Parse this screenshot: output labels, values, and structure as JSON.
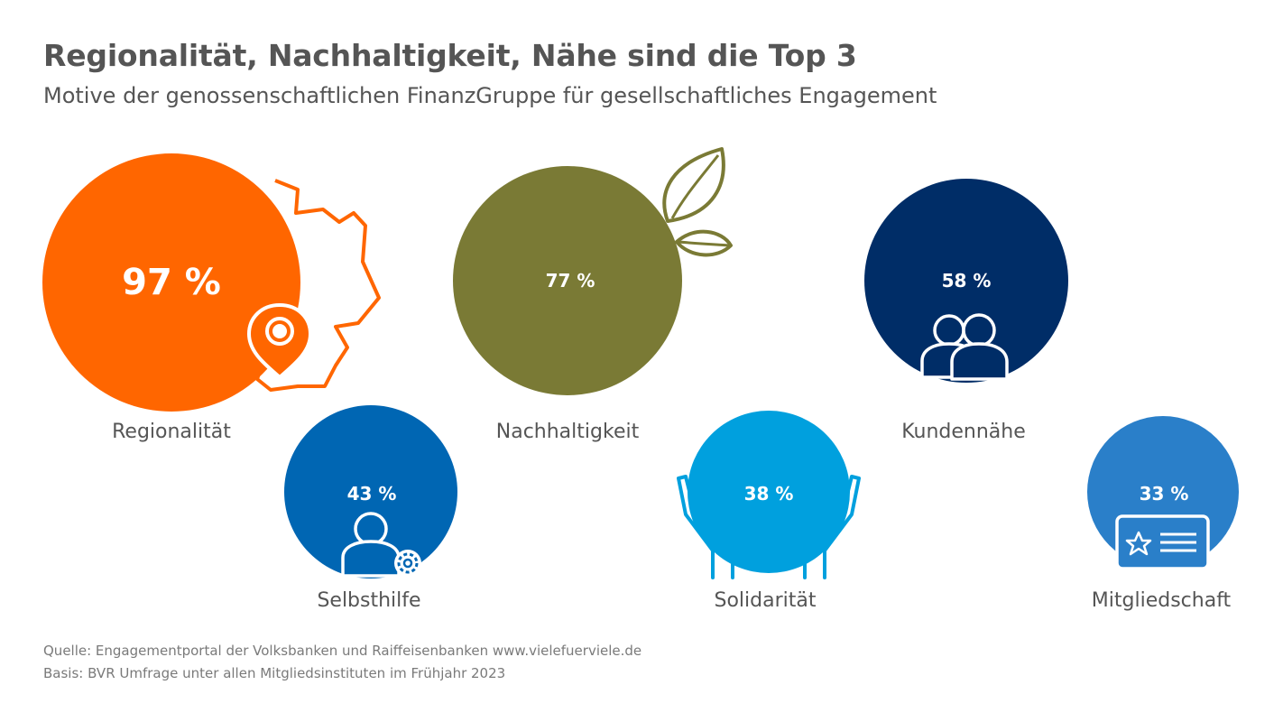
{
  "title": "Regionalität, Nachhaltigkeit, Nähe sind die Top 3",
  "subtitle": "Motive der genossenschaftlichen FinanzGruppe für gesellschaftliches Engagement",
  "chart_data": {
    "type": "bubble",
    "unit": "%",
    "items": [
      {
        "label": "Regionalität",
        "value": 97,
        "value_label": "97 %",
        "color": "#ff6600",
        "icon": "germany-map-pin-icon"
      },
      {
        "label": "Nachhaltigkeit",
        "value": 77,
        "value_label": "77 %",
        "color": "#7a7a35",
        "icon": "leaves-icon"
      },
      {
        "label": "Kundennähe",
        "value": 58,
        "value_label": "58 %",
        "color": "#002d67",
        "icon": "two-people-icon"
      },
      {
        "label": "Selbsthilfe",
        "value": 43,
        "value_label": "43 %",
        "color": "#0066b3",
        "icon": "person-gear-icon"
      },
      {
        "label": "Solidarität",
        "value": 38,
        "value_label": "38 %",
        "color": "#00a0de",
        "icon": "open-hands-icon"
      },
      {
        "label": "Mitgliedschaft",
        "value": 33,
        "value_label": "33 %",
        "color": "#2a7fc9",
        "icon": "membership-card-icon"
      }
    ]
  },
  "footnotes": {
    "source": "Quelle: Engagementportal der Volksbanken und Raiffeisenbanken www.vielefuerviele.de",
    "basis": "Basis: BVR Umfrage unter allen Mitgliedsinstituten im Frühjahr 2023"
  }
}
